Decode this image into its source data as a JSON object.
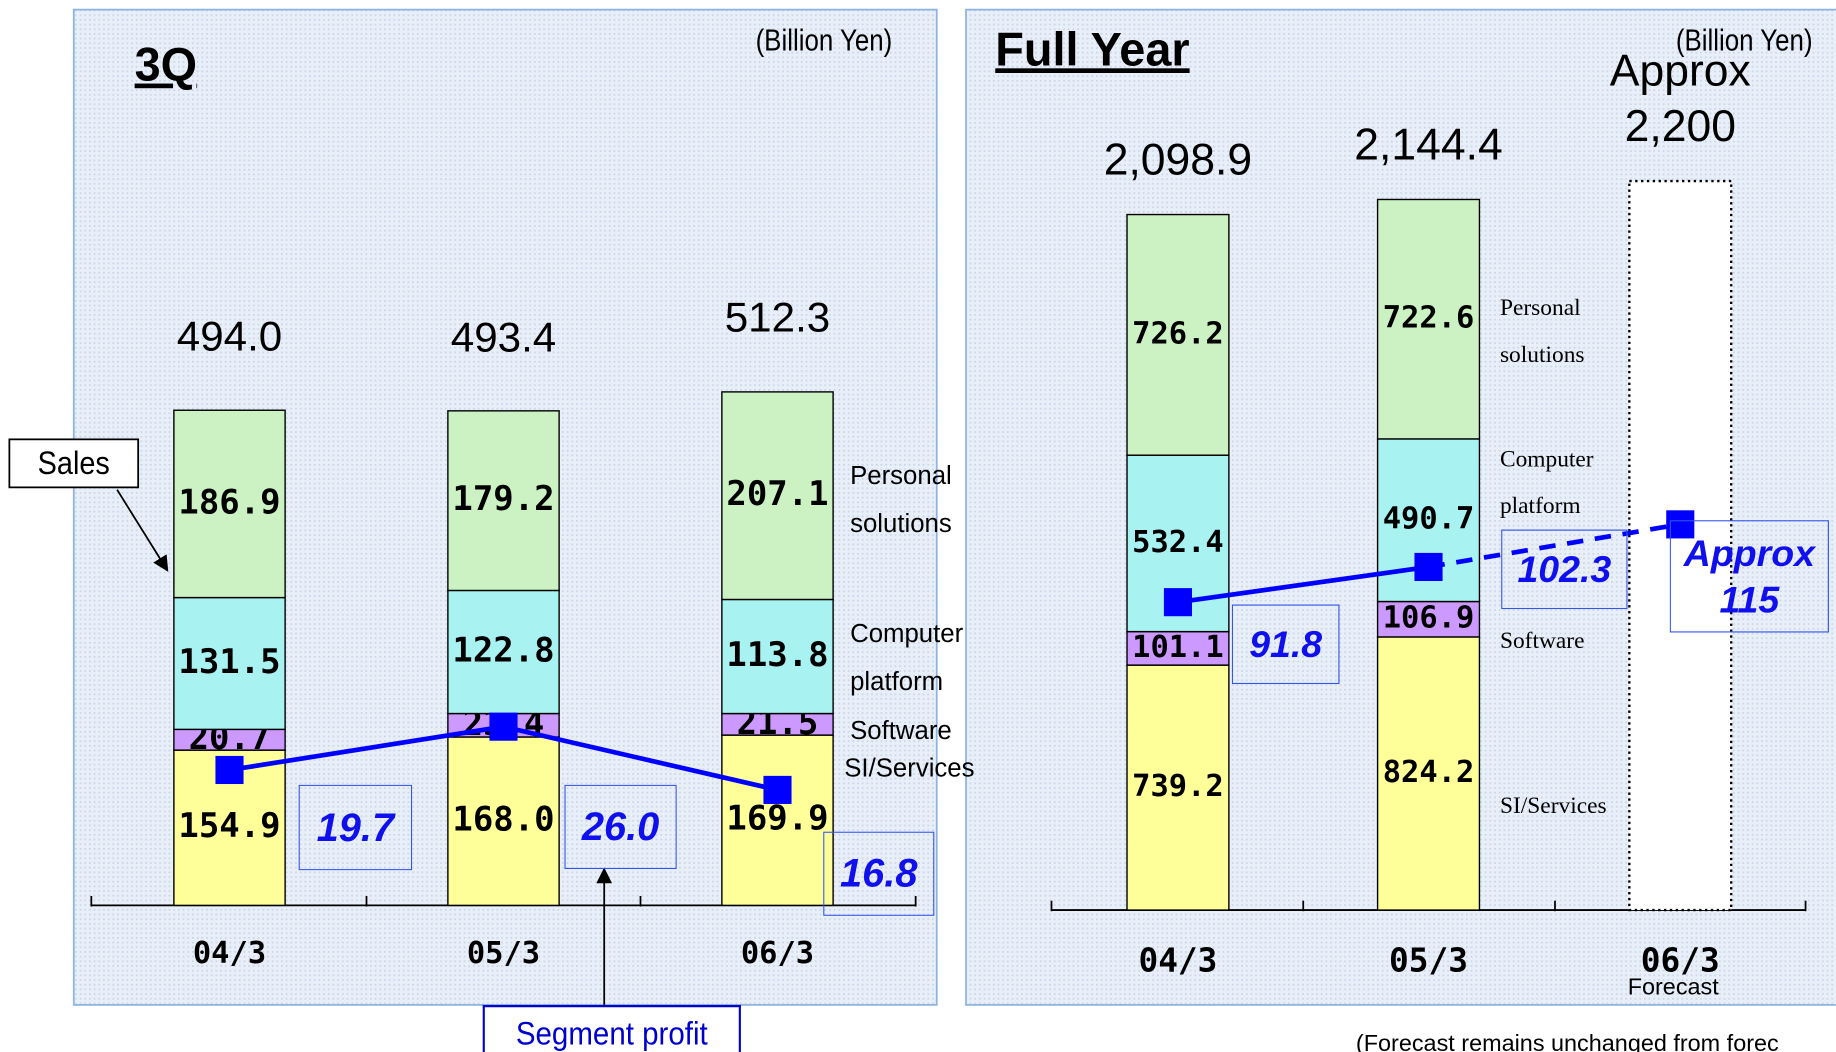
{
  "chart_data": [
    {
      "type": "bar",
      "stacked": true,
      "title": "3Q",
      "unit": "(Billion Yen)",
      "annotation": "Sales",
      "categories": [
        "04/3",
        "05/3",
        "06/3"
      ],
      "ylim": [
        0,
        600
      ],
      "y2lim": [
        0,
        87.5
      ],
      "series": [
        {
          "name": "SI/Services",
          "color": "#ffff99",
          "values": [
            154.9,
            168.0,
            169.9
          ],
          "value_labels": [
            "154.9",
            "168.0",
            "169.9"
          ]
        },
        {
          "name": "Software",
          "color": "#cc99ff",
          "values": [
            20.7,
            23.4,
            21.5
          ],
          "value_labels": [
            "20.7",
            "23.4",
            "21.5"
          ]
        },
        {
          "name": "Computer platform",
          "color": "#a8f2f2",
          "values": [
            131.5,
            122.8,
            113.8
          ],
          "value_labels": [
            "131.5",
            "122.8",
            "113.8"
          ]
        },
        {
          "name": "Personal solutions",
          "color": "#ccf2c4",
          "values": [
            186.9,
            179.2,
            207.1
          ],
          "value_labels": [
            "186.9",
            "179.2",
            "207.1"
          ]
        },
        {
          "name": "Segment profit",
          "type": "line",
          "axis": "y2",
          "color": "#0000ff",
          "values": [
            19.7,
            26.0,
            16.8
          ],
          "value_labels": [
            "19.7",
            "26.0",
            "16.8"
          ]
        }
      ],
      "totals": {
        "values": [
          494.0,
          493.4,
          512.3
        ],
        "value_labels": [
          "494.0",
          "493.4",
          "512.3"
        ]
      }
    },
    {
      "type": "bar",
      "stacked": true,
      "title": "Full Year",
      "unit": "(Billion Yen)",
      "sublabel": "Forecast",
      "note": "(Forecast remains unchanged from  forec",
      "categories": [
        "04/3",
        "05/3",
        "06/3"
      ],
      "ylim": [
        0,
        2500
      ],
      "y2lim": [
        0,
        247
      ],
      "series": [
        {
          "name": "SI/Services",
          "color": "#ffff99",
          "values": [
            739.2,
            824.2,
            null
          ],
          "value_labels": [
            "739.2",
            "824.2",
            null
          ]
        },
        {
          "name": "Software",
          "color": "#cc99ff",
          "values": [
            101.1,
            106.9,
            null
          ],
          "value_labels": [
            "101.1",
            "106.9",
            null
          ]
        },
        {
          "name": "Computer platform",
          "color": "#a8f2f2",
          "values": [
            532.4,
            490.7,
            null
          ],
          "value_labels": [
            "532.4",
            "490.7",
            null
          ]
        },
        {
          "name": "Personal solutions",
          "color": "#ccf2c4",
          "values": [
            726.2,
            722.6,
            null
          ],
          "value_labels": [
            "726.2",
            "722.6",
            null
          ]
        },
        {
          "name": null,
          "type": "line",
          "axis": "y2",
          "color": "#0000ff",
          "dashed_from": 1,
          "values": [
            91.8,
            102.3,
            115
          ],
          "value_labels": [
            "91.8",
            "102.3",
            "Approx 115"
          ]
        }
      ],
      "totals": {
        "values": [
          2098.9,
          2144.4,
          2200
        ],
        "value_labels": [
          "2,098.9",
          "2,144.4",
          "Approx 2,200"
        ]
      }
    }
  ]
}
